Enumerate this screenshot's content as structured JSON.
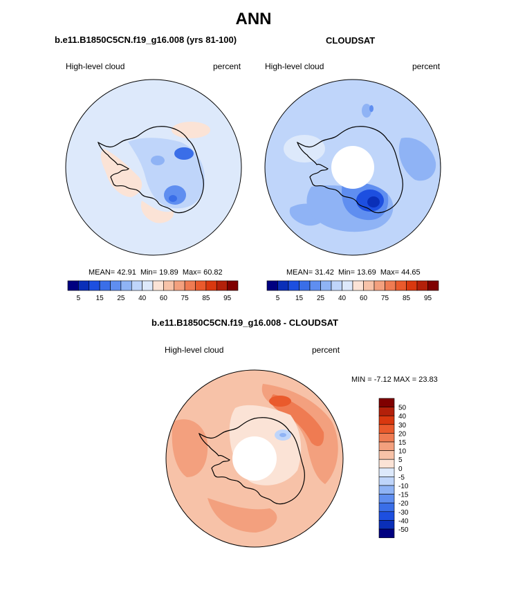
{
  "page": {
    "title": "ANN"
  },
  "colors": {
    "neg": [
      "#000080",
      "#0a2fb8",
      "#1d4fe0",
      "#3a6ee8",
      "#5f8ef0",
      "#8fb3f5",
      "#bfd5fa",
      "#dde9fb"
    ],
    "pos": [
      "#fbe3d6",
      "#f7c2a8",
      "#f3a07e",
      "#ef7b52",
      "#ea5a2c",
      "#d9380f",
      "#b3200a",
      "#7f0000"
    ],
    "coast": "#000000",
    "land_hole": "#ffffff"
  },
  "panels": {
    "model": {
      "title": "b.e11.B1850C5CN.f19_g16.008 (yrs 81-100)",
      "variable": "High-level cloud",
      "units": "percent",
      "stats": {
        "mean_label": "MEAN=",
        "mean": "42.91",
        "min_label": "Min=",
        "min": "19.89",
        "max_label": "Max=",
        "max": "60.82"
      },
      "colorbar_labels": [
        "5",
        "15",
        "25",
        "40",
        "60",
        "75",
        "85",
        "95"
      ]
    },
    "obs": {
      "title": "CLOUDSAT",
      "variable": "High-level cloud",
      "units": "percent",
      "stats": {
        "mean_label": "MEAN=",
        "mean": "31.42",
        "min_label": "Min=",
        "min": "13.69",
        "max_label": "Max=",
        "max": "44.65"
      },
      "colorbar_labels": [
        "5",
        "15",
        "25",
        "40",
        "60",
        "75",
        "85",
        "95"
      ]
    },
    "diff": {
      "title": "b.e11.B1850C5CN.f19_g16.008 - CLOUDSAT",
      "variable": "High-level cloud",
      "units": "percent",
      "stats": {
        "min_label": "MIN =",
        "min": "-7.12",
        "max_label": "MAX =",
        "max": "23.83"
      },
      "colorbar_labels": [
        "50",
        "40",
        "30",
        "20",
        "15",
        "10",
        "5",
        "0",
        "-5",
        "-10",
        "-15",
        "-20",
        "-30",
        "-40",
        "-50"
      ]
    }
  }
}
